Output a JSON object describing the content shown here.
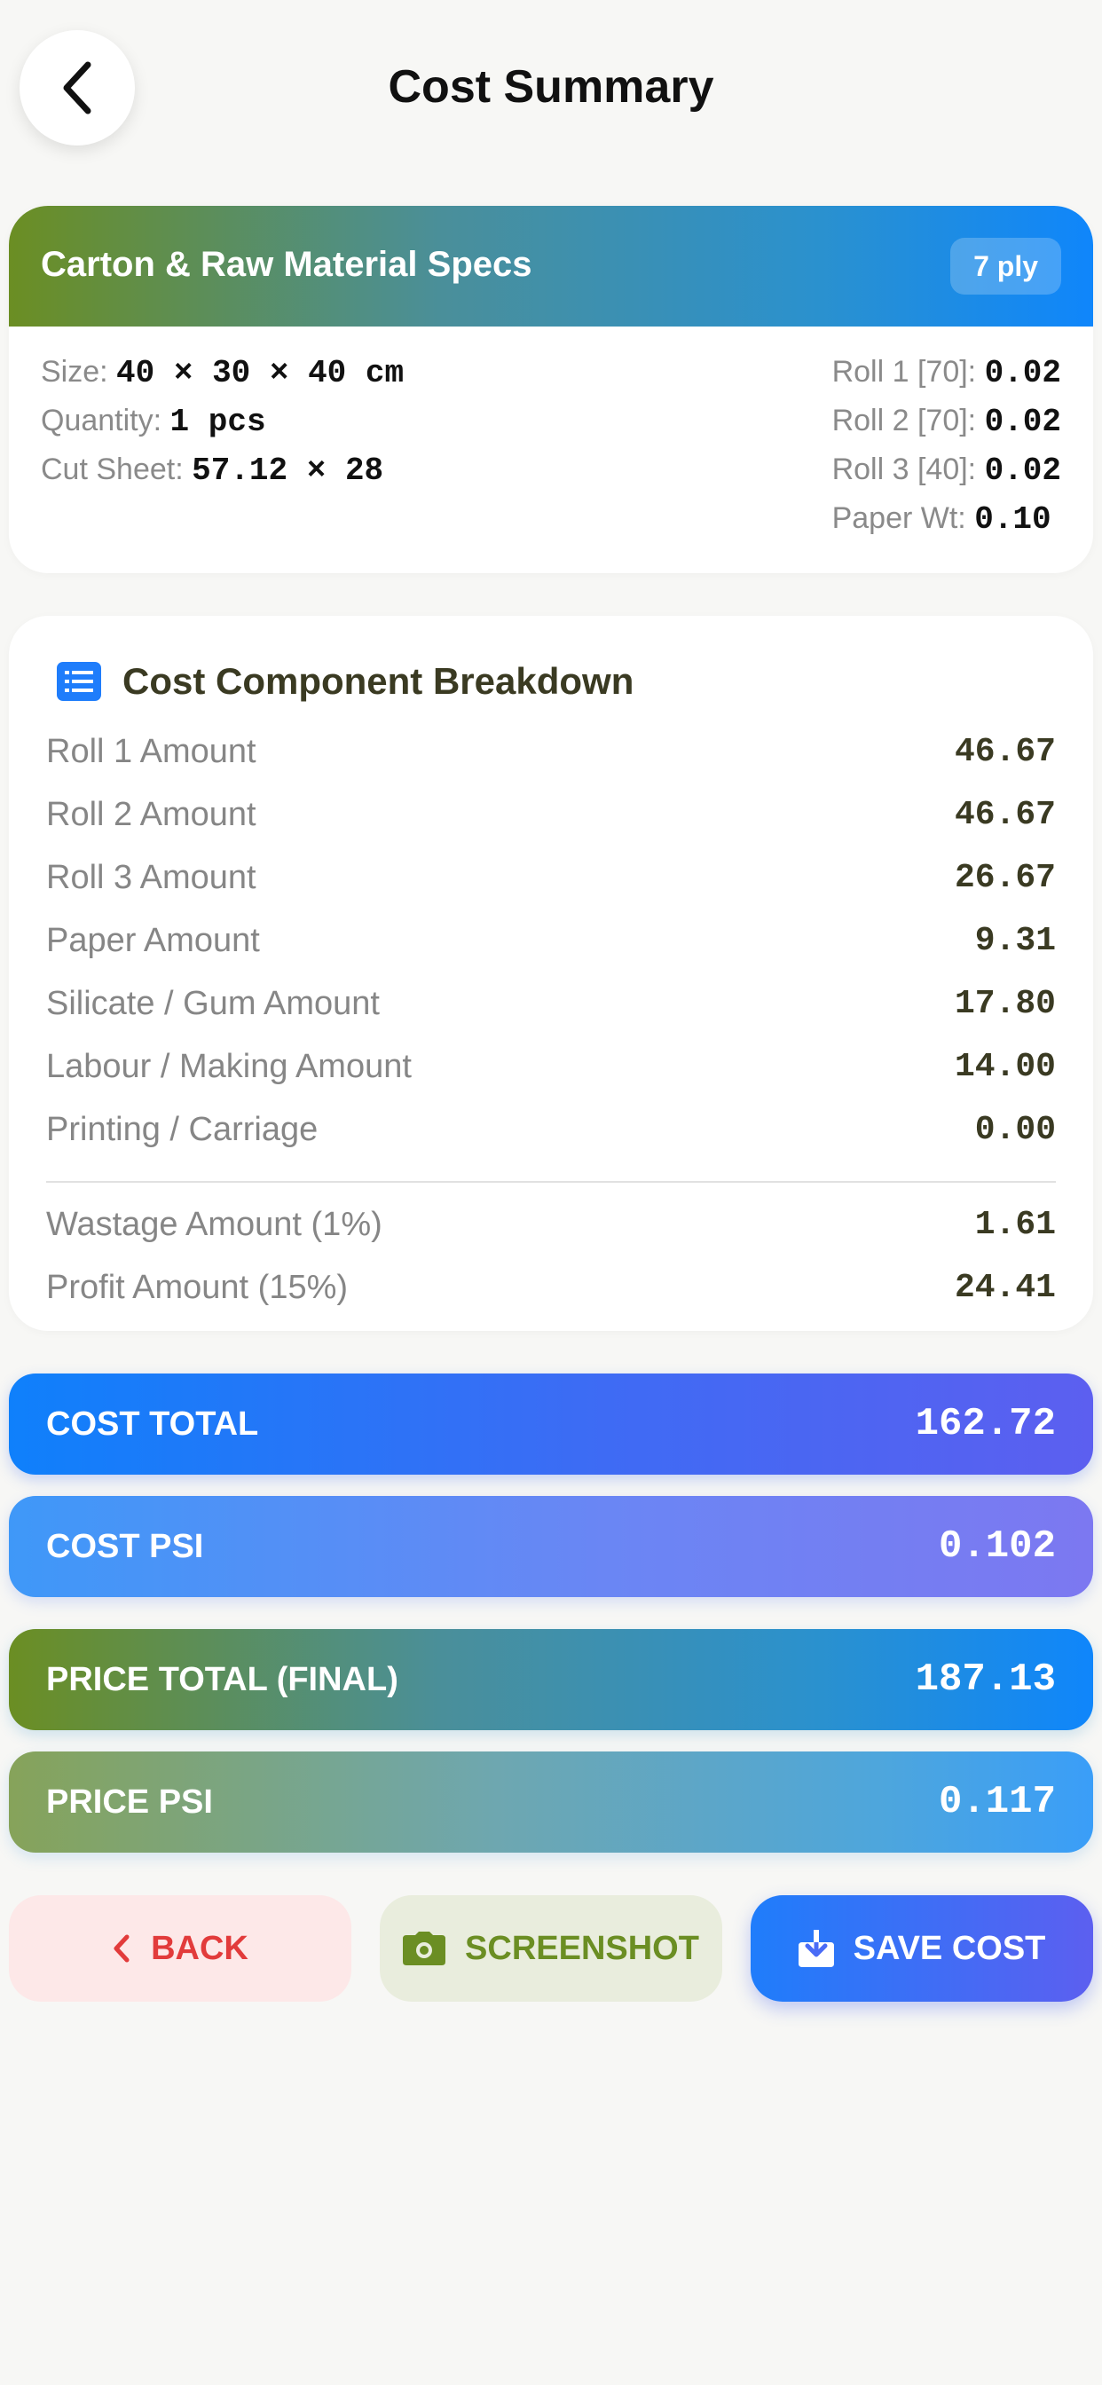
{
  "header": {
    "title": "Cost Summary"
  },
  "specs": {
    "title": "Carton & Raw Material Specs",
    "ply": "7 ply",
    "left": [
      {
        "label": "Size:",
        "value": "40 × 30 × 40 cm"
      },
      {
        "label": "Quantity:",
        "value": "1 pcs"
      },
      {
        "label": "Cut Sheet:",
        "value": "57.12 × 28"
      }
    ],
    "right": [
      {
        "label": "Roll 1 [70]:",
        "value": "0.02"
      },
      {
        "label": "Roll 2 [70]:",
        "value": "0.02"
      },
      {
        "label": "Roll 3 [40]:",
        "value": "0.02"
      },
      {
        "label": "Paper Wt:",
        "value": "0.10"
      }
    ]
  },
  "breakdown": {
    "title": "Cost Component Breakdown",
    "rows": [
      {
        "label": "Roll 1 Amount",
        "value": "46.67"
      },
      {
        "label": "Roll 2 Amount",
        "value": "46.67"
      },
      {
        "label": "Roll 3 Amount",
        "value": "26.67"
      },
      {
        "label": "Paper Amount",
        "value": "9.31"
      },
      {
        "label": "Silicate / Gum Amount",
        "value": "17.80"
      },
      {
        "label": "Labour / Making Amount",
        "value": "14.00"
      },
      {
        "label": "Printing / Carriage",
        "value": "0.00"
      }
    ],
    "extra": [
      {
        "label": "Wastage Amount (1%)",
        "value": "1.61"
      },
      {
        "label": "Profit Amount (15%)",
        "value": "24.41"
      }
    ]
  },
  "totals": [
    {
      "label": "COST TOTAL",
      "value": "162.72"
    },
    {
      "label": "COST PSI",
      "value": "0.102"
    },
    {
      "label": "PRICE TOTAL (FINAL)",
      "value": "187.13"
    },
    {
      "label": "PRICE PSI",
      "value": "0.117"
    }
  ],
  "actions": {
    "back": "BACK",
    "screenshot": "SCREENSHOT",
    "save": "SAVE COST"
  },
  "colors": {
    "accent_blue": "#0f86fb",
    "accent_green": "#6b8e23",
    "danger": "#e23b3b"
  },
  "icons": {
    "nav_back": "chevron-left-icon",
    "breakdown": "list-icon",
    "back_button": "chevron-left-icon",
    "screenshot_button": "camera-icon",
    "save_button": "download-icon"
  }
}
